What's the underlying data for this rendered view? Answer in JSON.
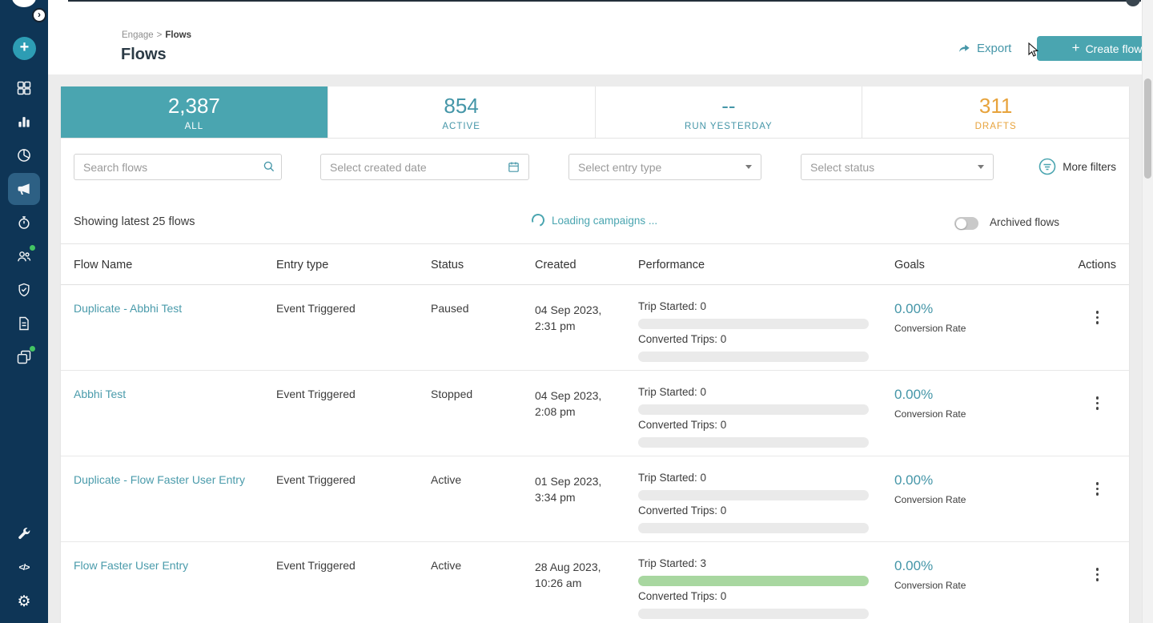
{
  "colors": {
    "sidebar_bg": "#0E3556",
    "teal": "#4AA5B0",
    "teal_text": "#4596A8",
    "orange": "#E7A33C",
    "progress_green": "#A8D7A0",
    "progress_track": "#EAEAEA",
    "link": "#4A9BAB"
  },
  "sidebar": {
    "icons": [
      "app-logo",
      "expand-chevron",
      "create-plus",
      "dashboard",
      "analytics",
      "reports-pie",
      "campaigns-megaphone",
      "journeys-stopwatch",
      "users",
      "security-shield",
      "documents",
      "catalogs-layers",
      "tools-wrench",
      "developer-code",
      "settings-gear"
    ],
    "active_icon": "campaigns-megaphone",
    "notification_dot_icons": [
      "users",
      "catalogs-layers"
    ]
  },
  "header": {
    "breadcrumb": {
      "parent": "Engage",
      "separator": ">",
      "current": "Flows"
    },
    "title": "Flows",
    "export_label": "Export",
    "create_flow_plus": "+",
    "create_flow_label": "Create flow"
  },
  "stats": {
    "tabs": [
      {
        "value": "2,387",
        "label": "ALL",
        "selected": true
      },
      {
        "value": "854",
        "label": "ACTIVE",
        "selected": false
      },
      {
        "value": "--",
        "label": "RUN YESTERDAY",
        "selected": false
      },
      {
        "value": "311",
        "label": "DRAFTS",
        "selected": false
      }
    ]
  },
  "filters": {
    "search_placeholder": "Search flows",
    "created_date_placeholder": "Select created date",
    "entry_type_placeholder": "Select entry type",
    "status_placeholder": "Select status",
    "more_filters_label": "More filters"
  },
  "list_bar": {
    "showing_text": "Showing latest 25 flows",
    "loading_text": "Loading campaigns ...",
    "archived_label": "Archived flows",
    "archived_toggle_on": false
  },
  "table": {
    "columns": [
      "Flow Name",
      "Entry type",
      "Status",
      "Created",
      "Performance",
      "Goals",
      "Actions"
    ],
    "rows": [
      {
        "name": "Duplicate - Abbhi Test",
        "entry_type": "Event Triggered",
        "status": "Paused",
        "created_date": "04 Sep 2023,",
        "created_time": "2:31 pm",
        "perf1_label": "Trip Started: 0",
        "perf1_fill": 0,
        "perf2_label": "Converted Trips: 0",
        "perf2_fill": 0,
        "goal_value": "0.00%",
        "goal_label": "Conversion Rate"
      },
      {
        "name": "Abbhi Test",
        "entry_type": "Event Triggered",
        "status": "Stopped",
        "created_date": "04 Sep 2023,",
        "created_time": "2:08 pm",
        "perf1_label": "Trip Started: 0",
        "perf1_fill": 0,
        "perf2_label": "Converted Trips: 0",
        "perf2_fill": 0,
        "goal_value": "0.00%",
        "goal_label": "Conversion Rate"
      },
      {
        "name": "Duplicate - Flow Faster User Entry",
        "entry_type": "Event Triggered",
        "status": "Active",
        "created_date": "01 Sep 2023,",
        "created_time": "3:34 pm",
        "perf1_label": "Trip Started: 0",
        "perf1_fill": 0,
        "perf2_label": "Converted Trips: 0",
        "perf2_fill": 0,
        "goal_value": "0.00%",
        "goal_label": "Conversion Rate"
      },
      {
        "name": "Flow Faster User Entry",
        "entry_type": "Event Triggered",
        "status": "Active",
        "created_date": "28 Aug 2023,",
        "created_time": "10:26 am",
        "perf1_label": "Trip Started: 3",
        "perf1_fill": 100,
        "perf2_label": "Converted Trips: 0",
        "perf2_fill": 0,
        "goal_value": "0.00%",
        "goal_label": "Conversion Rate"
      }
    ]
  }
}
